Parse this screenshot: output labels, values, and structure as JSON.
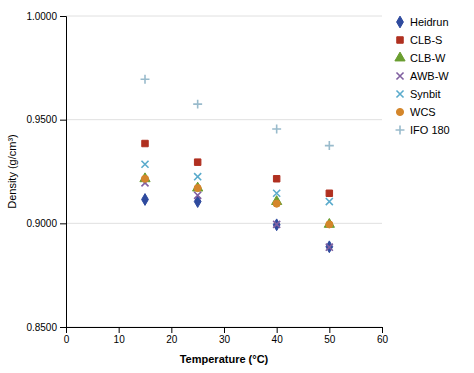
{
  "chart_data": {
    "type": "scatter",
    "xlabel": "Temperature (°C)",
    "ylabel": "Density (g/cm³)",
    "series": [
      {
        "name": "Heidrun",
        "color": "#2e4a9e",
        "marker": "diamond",
        "x": [
          15,
          25,
          40,
          50
        ],
        "values": [
          0.9115,
          0.9105,
          0.8993,
          0.8887
        ]
      },
      {
        "name": "CLB-S",
        "color": "#b03020",
        "marker": "square",
        "x": [
          15,
          25,
          40,
          50
        ],
        "values": [
          0.9385,
          0.9295,
          0.9215,
          0.9145
        ]
      },
      {
        "name": "CLB-W",
        "color": "#6a9e30",
        "marker": "triangle",
        "x": [
          15,
          25,
          40,
          50
        ],
        "values": [
          0.9215,
          0.917,
          0.9105,
          0.8995
        ]
      },
      {
        "name": "AWB-W",
        "color": "#8060a0",
        "marker": "x",
        "x": [
          15,
          25,
          40,
          50
        ],
        "values": [
          0.9195,
          0.9135,
          0.8995,
          0.8885
        ]
      },
      {
        "name": "Synbit",
        "color": "#5aabcc",
        "marker": "x",
        "x": [
          15,
          25,
          40,
          50
        ],
        "values": [
          0.9285,
          0.9225,
          0.9145,
          0.9105
        ]
      },
      {
        "name": "WCS",
        "color": "#d4862b",
        "marker": "circle",
        "x": [
          15,
          25,
          40,
          50
        ],
        "values": [
          0.9215,
          0.917,
          0.9095,
          0.8995
        ]
      },
      {
        "name": "IFO 180",
        "color": "#99bbcc",
        "marker": "plus",
        "x": [
          15,
          25,
          40,
          50
        ],
        "values": [
          0.9695,
          0.9575,
          0.9455,
          0.9375
        ]
      }
    ],
    "xlim": [
      0,
      60
    ],
    "ylim": [
      0.85,
      1.0
    ],
    "xticks": [
      0,
      10,
      20,
      30,
      40,
      50,
      60
    ],
    "yticks": [
      {
        "value": 0.85,
        "label": "0.8500"
      },
      {
        "value": 0.9,
        "label": "0.9000"
      },
      {
        "value": 0.95,
        "label": "0.9500"
      },
      {
        "value": 1.0,
        "label": "1.0000"
      }
    ],
    "grid": "y",
    "legend": "right"
  }
}
